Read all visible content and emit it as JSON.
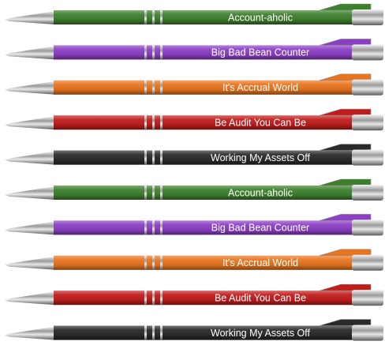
{
  "pens": [
    {
      "label": "Account-aholic",
      "color": "#3d7f2c"
    },
    {
      "label": "Big Bad Bean Counter",
      "color": "#8b3fc4"
    },
    {
      "label": "It's Accrual World",
      "color": "#e8741e"
    },
    {
      "label": "Be Audit You Can Be",
      "color": "#c01c1c"
    },
    {
      "label": "Working My Assets Off",
      "color": "#2a2a2a"
    },
    {
      "label": "Account-aholic",
      "color": "#3d7f2c"
    },
    {
      "label": "Big Bad Bean Counter",
      "color": "#8b3fc4"
    },
    {
      "label": "It's Accrual World",
      "color": "#e8741e"
    },
    {
      "label": "Be Audit You Can Be",
      "color": "#c01c1c"
    },
    {
      "label": "Working My Assets Off",
      "color": "#2a2a2a"
    }
  ]
}
